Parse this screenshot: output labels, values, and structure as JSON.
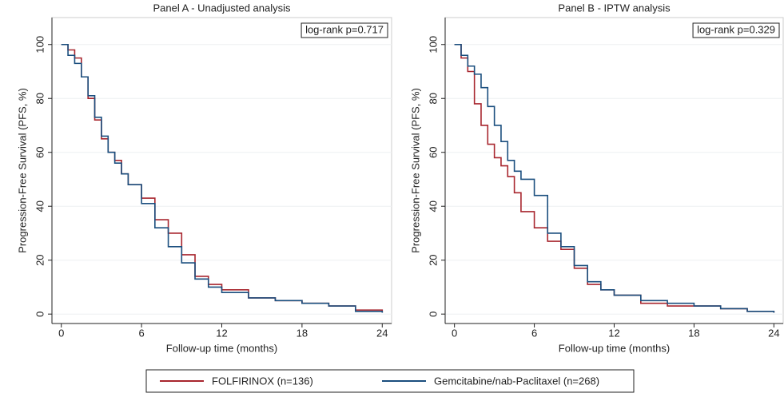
{
  "chart_data": [
    {
      "type": "step",
      "title": "Panel A - Unadjusted analysis",
      "xlabel": "Follow-up time (months)",
      "ylabel": "Progression-Free Survival (PFS, %)",
      "annotation": "log-rank p=0.717",
      "x": [
        0,
        0.5,
        1,
        1.5,
        2,
        2.5,
        3,
        3.5,
        4,
        4.5,
        5,
        6,
        7,
        8,
        9,
        10,
        11,
        12,
        14,
        16,
        18,
        20,
        22,
        24
      ],
      "series": [
        {
          "name": "FOLFIRINOX (n=136)",
          "color": "#a8262e",
          "values": [
            100,
            98,
            95,
            88,
            80,
            72,
            65,
            60,
            57,
            52,
            48,
            43,
            35,
            30,
            22,
            14,
            11,
            9,
            6,
            5,
            4,
            3,
            1.5,
            0.5
          ]
        },
        {
          "name": "Gemcitabine/nab-Paclitaxel (n=268)",
          "color": "#1a4e7e",
          "values": [
            100,
            96,
            93,
            88,
            81,
            73,
            66,
            60,
            56,
            52,
            48,
            41,
            32,
            25,
            19,
            13,
            10,
            8,
            6,
            5,
            4,
            3,
            1,
            0.5
          ]
        }
      ],
      "xlim": [
        -0.7,
        24.7
      ],
      "ylim": [
        -3.5,
        110
      ],
      "xticks": [
        0,
        6,
        12,
        18,
        24
      ],
      "yticks": [
        0,
        20,
        40,
        60,
        80,
        100
      ],
      "grid": true
    },
    {
      "type": "step",
      "title": "Panel B - IPTW analysis",
      "xlabel": "Follow-up time (months)",
      "ylabel": "Progression-Free Survival (PFS, %)",
      "annotation": "log-rank p=0.329",
      "x": [
        0,
        0.5,
        1,
        1.5,
        2,
        2.5,
        3,
        3.5,
        4,
        4.5,
        5,
        6,
        7,
        8,
        9,
        10,
        11,
        12,
        14,
        16,
        18,
        20,
        22,
        24
      ],
      "series": [
        {
          "name": "FOLFIRINOX (n=136)",
          "color": "#a8262e",
          "values": [
            100,
            95,
            90,
            78,
            70,
            63,
            58,
            55,
            51,
            45,
            38,
            32,
            27,
            24,
            17,
            11,
            9,
            7,
            4,
            3,
            3,
            2,
            1,
            0.5
          ]
        },
        {
          "name": "Gemcitabine/nab-Paclitaxel (n=268)",
          "color": "#1a4e7e",
          "values": [
            100,
            96,
            92,
            89,
            84,
            77,
            70,
            64,
            57,
            53,
            50,
            44,
            30,
            25,
            18,
            12,
            9,
            7,
            5,
            4,
            3,
            2,
            1,
            0.5
          ]
        }
      ],
      "xlim": [
        -0.7,
        24.7
      ],
      "ylim": [
        -3.5,
        110
      ],
      "xticks": [
        0,
        6,
        12,
        18,
        24
      ],
      "yticks": [
        0,
        20,
        40,
        60,
        80,
        100
      ],
      "grid": true
    }
  ]
}
